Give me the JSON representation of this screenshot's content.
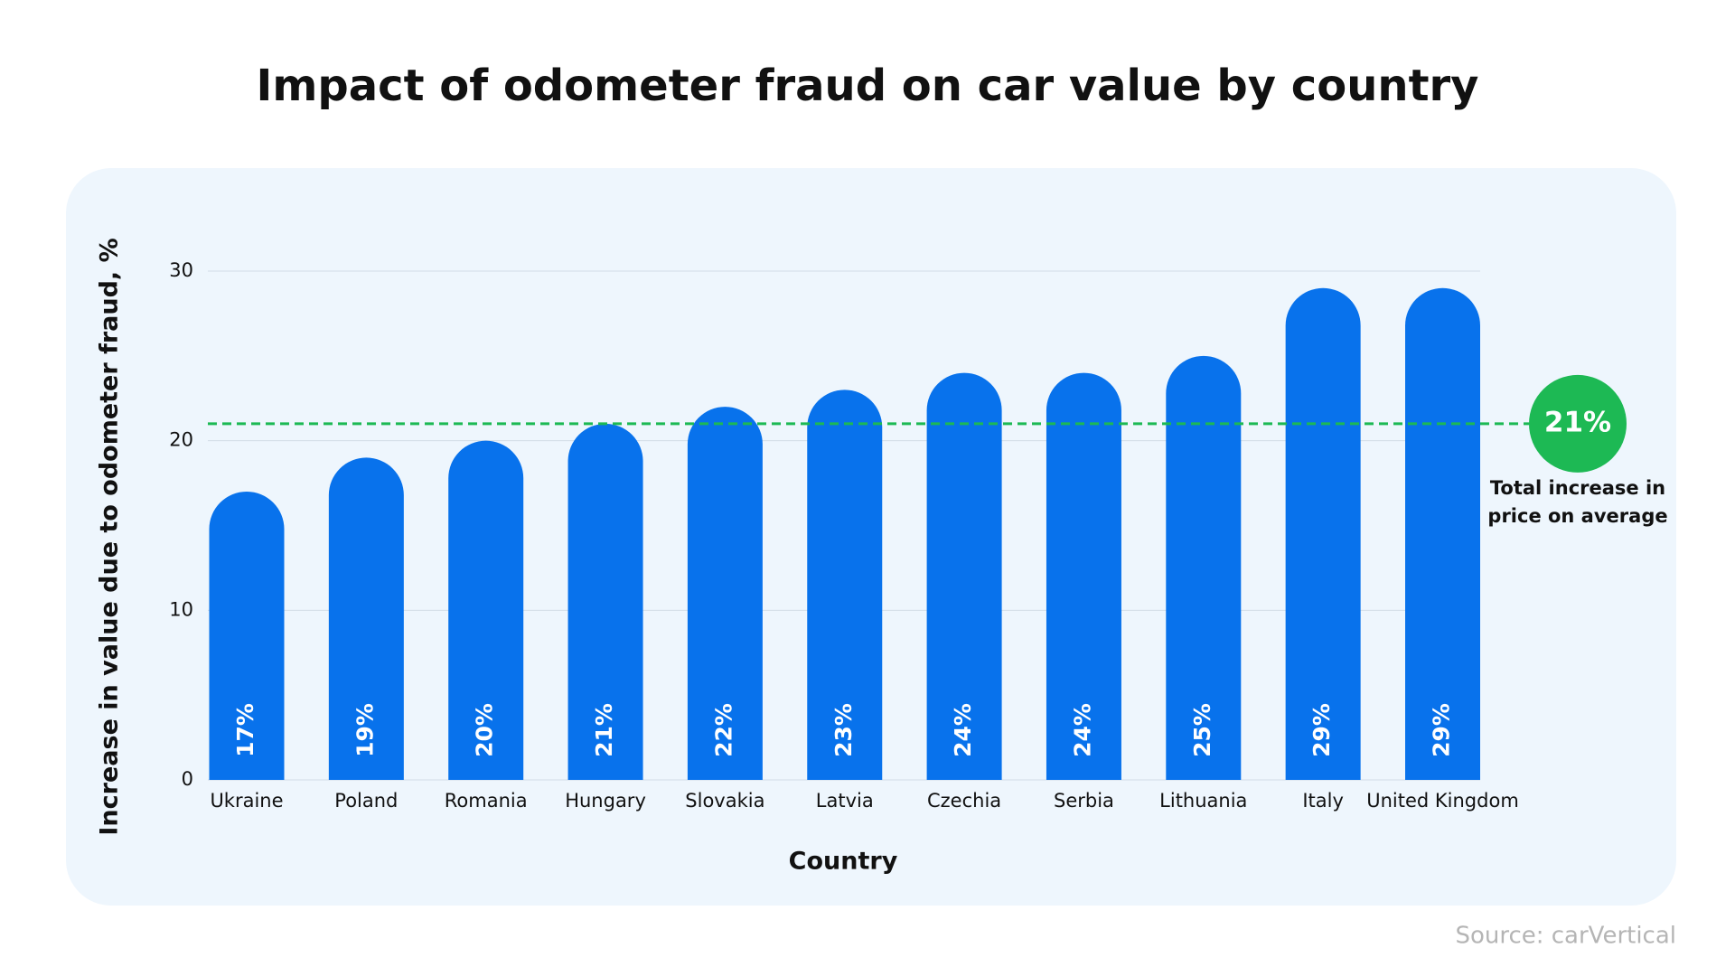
{
  "chart_data": {
    "type": "bar",
    "title": "Impact of odometer fraud on car value by country",
    "x_label": "Country",
    "y_label": "Increase in value due to odometer fraud, %",
    "categories": [
      "Ukraine",
      "Poland",
      "Romania",
      "Hungary",
      "Slovakia",
      "Latvia",
      "Czechia",
      "Serbia",
      "Lithuania",
      "Italy",
      "United Kingdom"
    ],
    "values": [
      17,
      19,
      20,
      21,
      22,
      23,
      24,
      24,
      25,
      29,
      29
    ],
    "value_labels": [
      "17%",
      "19%",
      "20%",
      "21%",
      "22%",
      "23%",
      "24%",
      "24%",
      "25%",
      "29%",
      "29%"
    ],
    "color": "#0872ec",
    "ylim": [
      0,
      30
    ],
    "yticks": [
      0,
      10,
      20,
      30
    ],
    "grid": true,
    "average": {
      "value": 21,
      "label": "21%",
      "text": "Total increase in price on average",
      "color": "#1db954"
    },
    "source": "Source: carVertical"
  }
}
